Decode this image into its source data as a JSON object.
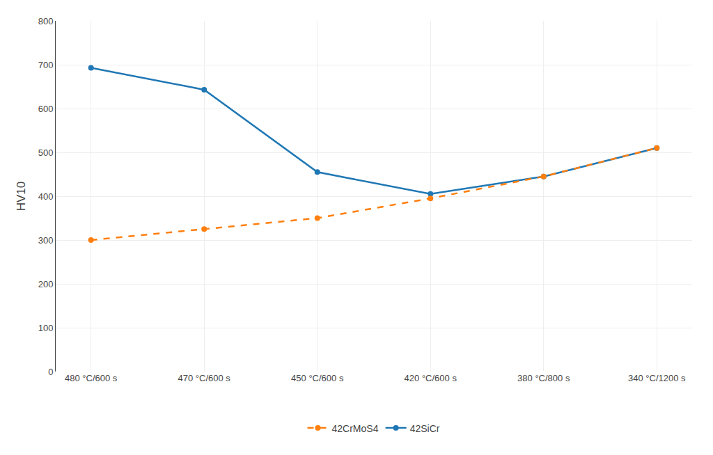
{
  "chart_data": {
    "type": "line",
    "categories": [
      "480 °C/600 s",
      "470 °C/600 s",
      "450 °C/600 s",
      "420 °C/600 s",
      "380 °C/800 s",
      "340 °C/1200 s"
    ],
    "series": [
      {
        "name": "42SiCr",
        "values": [
          693,
          643,
          455,
          405,
          445,
          510
        ],
        "line_style": "solid",
        "marker": "circle"
      },
      {
        "name": "42CrMoS4",
        "values": [
          300,
          325,
          350,
          395,
          445,
          510
        ],
        "line_style": "dash",
        "marker": "circle"
      }
    ],
    "ylabel": "HV10",
    "ylim": [
      0,
      800
    ],
    "yticks": [
      0,
      100,
      200,
      300,
      400,
      500,
      600,
      700,
      800
    ],
    "grid": true,
    "legend": "bottom"
  }
}
